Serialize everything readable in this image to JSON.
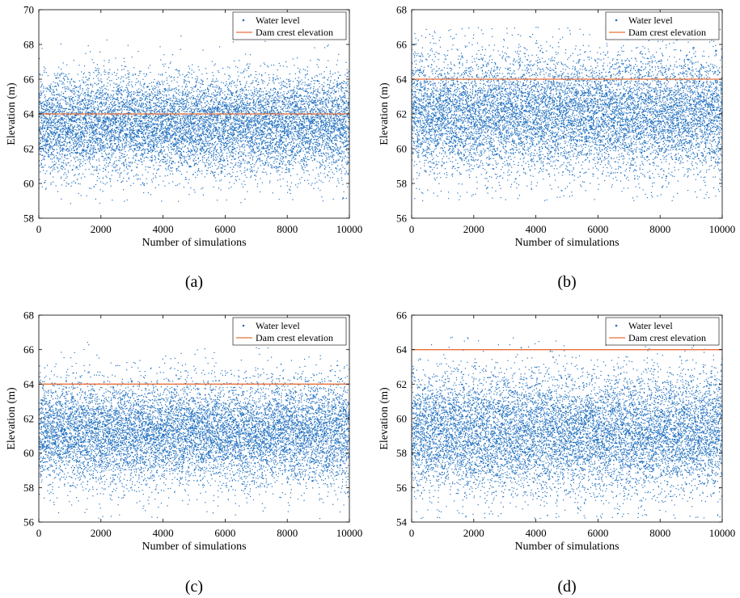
{
  "chart_data": [
    {
      "type": "scatter",
      "panel_label": "(a)",
      "xlabel": "Number of simulations",
      "ylabel": "Elevation (m)",
      "xlim": [
        0,
        10000
      ],
      "ylim": [
        58,
        70
      ],
      "xticks": [
        0,
        2000,
        4000,
        6000,
        8000,
        10000
      ],
      "yticks": [
        58,
        60,
        62,
        64,
        66,
        68,
        70
      ],
      "n_points": 10000,
      "water_level_distribution": {
        "mean": 63.4,
        "std": 1.45,
        "min": 58.8,
        "max": 68.5
      },
      "dam_crest_elevation": 64,
      "legend": {
        "location": "top-right",
        "entries": [
          "Water level",
          "Dam crest elevation"
        ]
      },
      "grid": false
    },
    {
      "type": "scatter",
      "panel_label": "(b)",
      "xlabel": "Number of simulations",
      "ylabel": "Elevation (m)",
      "xlim": [
        0,
        10000
      ],
      "ylim": [
        56,
        68
      ],
      "xticks": [
        0,
        2000,
        4000,
        6000,
        8000,
        10000
      ],
      "yticks": [
        56,
        58,
        60,
        62,
        64,
        66,
        68
      ],
      "n_points": 10000,
      "water_level_distribution": {
        "mean": 62.0,
        "std": 1.75,
        "min": 57.0,
        "max": 67.0
      },
      "dam_crest_elevation": 64,
      "legend": {
        "location": "top-right",
        "entries": [
          "Water level",
          "Dam crest elevation"
        ]
      },
      "grid": false
    },
    {
      "type": "scatter",
      "panel_label": "(c)",
      "xlabel": "Number of simulations",
      "ylabel": "Elevation (m)",
      "xlim": [
        0,
        10000
      ],
      "ylim": [
        56,
        68
      ],
      "xticks": [
        0,
        2000,
        4000,
        6000,
        8000,
        10000
      ],
      "yticks": [
        56,
        58,
        60,
        62,
        64,
        66,
        68
      ],
      "n_points": 10000,
      "water_level_distribution": {
        "mean": 61.2,
        "std": 1.55,
        "min": 56.2,
        "max": 66.7
      },
      "dam_crest_elevation": 64,
      "legend": {
        "location": "top-right",
        "entries": [
          "Water level",
          "Dam crest elevation"
        ]
      },
      "grid": false
    },
    {
      "type": "scatter",
      "panel_label": "(d)",
      "xlabel": "Number of simulations",
      "ylabel": "Elevation (m)",
      "xlim": [
        0,
        10000
      ],
      "ylim": [
        54,
        66
      ],
      "xticks": [
        0,
        2000,
        4000,
        6000,
        8000,
        10000
      ],
      "yticks": [
        54,
        56,
        58,
        60,
        62,
        64,
        66
      ],
      "n_points": 10000,
      "water_level_distribution": {
        "mean": 59.2,
        "std": 1.75,
        "min": 54.2,
        "max": 64.8
      },
      "dam_crest_elevation": 64,
      "legend": {
        "location": "top-right",
        "entries": [
          "Water level",
          "Dam crest elevation"
        ]
      },
      "grid": false
    }
  ],
  "colors": {
    "water_level": "#1f6fbf",
    "dam_crest": "#e8703a",
    "axis": "#000000"
  }
}
